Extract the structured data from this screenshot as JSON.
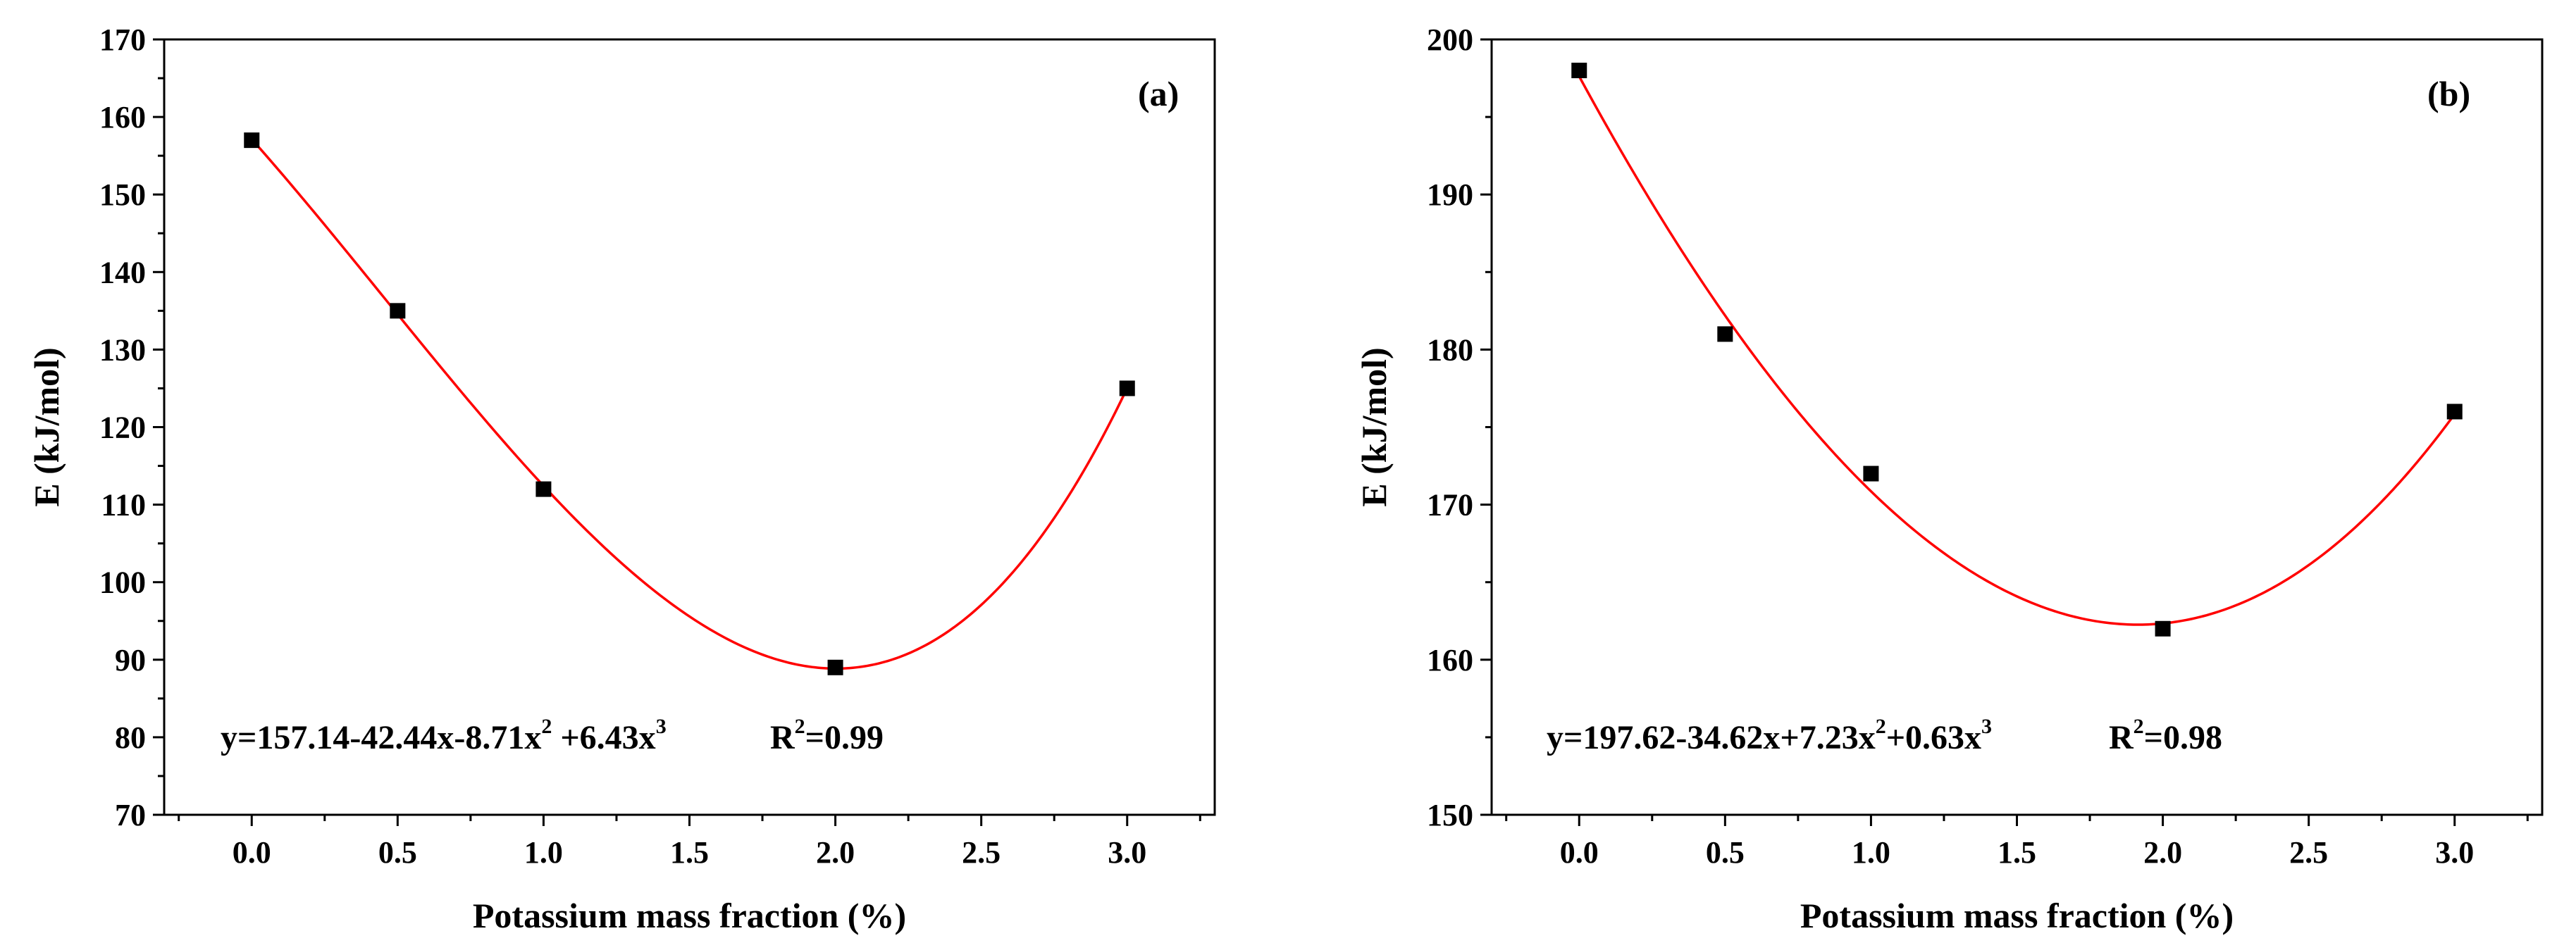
{
  "chart_data": [
    {
      "type": "scatter",
      "panel_label": "(a)",
      "xlabel": "Potassium mass fraction (%)",
      "ylabel": "E (kJ/mol)",
      "xlim": [
        -0.3,
        3.3
      ],
      "ylim": [
        70,
        170
      ],
      "xticks": [
        "0.0",
        "0.5",
        "1.0",
        "1.5",
        "2.0",
        "2.5",
        "3.0"
      ],
      "yticks": [
        "70",
        "80",
        "90",
        "100",
        "110",
        "120",
        "130",
        "140",
        "150",
        "160",
        "170"
      ],
      "points": {
        "x": [
          0,
          0.5,
          1,
          2,
          3
        ],
        "y": [
          157,
          135,
          112,
          89,
          125
        ]
      },
      "fit": {
        "coeffs": [
          157.14,
          -42.44,
          -8.71,
          6.43
        ],
        "color": "#ff0000"
      },
      "equation": {
        "main": "y=157.14-42.44x-8.71x",
        "sup1": "2",
        "mid": " +6.43x",
        "sup2": "3",
        "r_prefix": "R",
        "r_sup": "2",
        "r_value": "=0.99"
      },
      "marker_color": "#000000"
    },
    {
      "type": "scatter",
      "panel_label": "(b)",
      "xlabel": "Potassium mass fraction (%)",
      "ylabel": "E (kJ/mol)",
      "xlim": [
        -0.3,
        3.3
      ],
      "ylim": [
        150,
        200
      ],
      "xticks": [
        "0.0",
        "0.5",
        "1.0",
        "1.5",
        "2.0",
        "2.5",
        "3.0"
      ],
      "yticks": [
        "150",
        "160",
        "170",
        "180",
        "190",
        "200"
      ],
      "points": {
        "x": [
          0,
          0.5,
          1,
          2,
          3
        ],
        "y": [
          198,
          181,
          172,
          162,
          176
        ]
      },
      "fit": {
        "coeffs": [
          197.62,
          -34.62,
          7.23,
          0.63
        ],
        "color": "#ff0000"
      },
      "equation": {
        "main": "y=197.62-34.62x+7.23x",
        "sup1": "2",
        "mid": "+0.63x",
        "sup2": "3",
        "r_prefix": "R",
        "r_sup": "2",
        "r_value": "=0.98"
      },
      "marker_color": "#000000"
    }
  ]
}
